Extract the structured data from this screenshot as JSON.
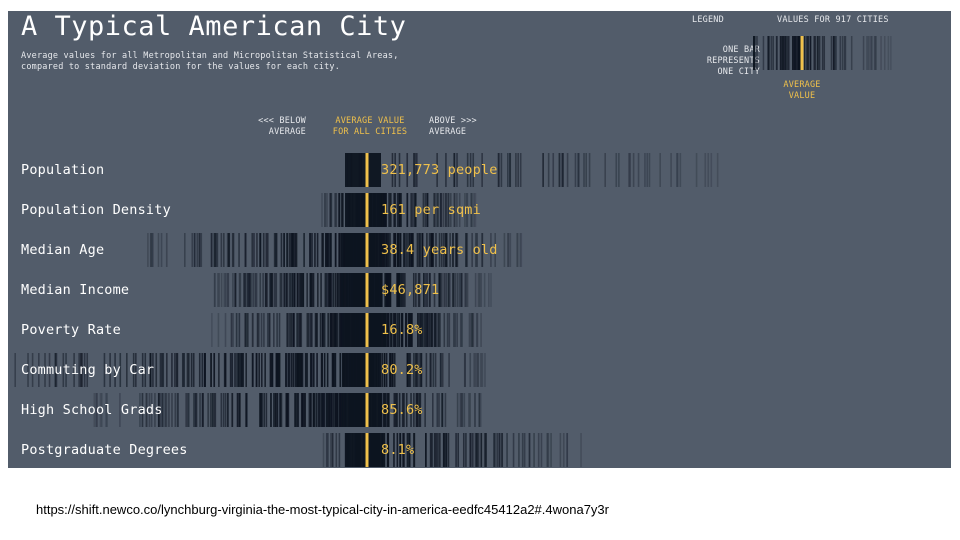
{
  "title": "A Typical American City",
  "subtitle_lines": [
    "Average values for all Metropolitan and Micropolitan Statistical Areas,",
    "compared to standard deviation for the values for each city."
  ],
  "legend": {
    "heading": "LEGEND",
    "values_heading": "VALUES FOR 917 CITIES",
    "bar_text": "ONE BAR\nREPRESENTS\nONE CITY",
    "average_text": "AVERAGE\nVALUE"
  },
  "column_headers": {
    "below": "<<< BELOW\nAVERAGE",
    "average": "AVERAGE VALUE\nFOR ALL CITIES",
    "above": "ABOVE >>>\nAVERAGE"
  },
  "colors": {
    "background": "#525c6a",
    "bar_dark": "#0d1420",
    "average_line": "#f0c14b",
    "value_text": "#f0c14b"
  },
  "chart_data": {
    "type": "strip",
    "title": "A Typical American City",
    "x_meaning": "city value relative to average (standard deviations)",
    "rows": [
      {
        "label": "Population",
        "average_display": "321,773 people",
        "spread_below": 0.3,
        "spread_above": 4.5,
        "density": "sparse"
      },
      {
        "label": "Population Density",
        "average_display": "161 per sqmi",
        "spread_below": 0.6,
        "spread_above": 1.4,
        "density": "medium"
      },
      {
        "label": "Median Age",
        "average_display": "38.4 years old",
        "spread_below": 3.0,
        "spread_above": 2.0,
        "density": "dense"
      },
      {
        "label": "Median Income",
        "average_display": "$46,871",
        "spread_below": 2.1,
        "spread_above": 1.6,
        "density": "dense"
      },
      {
        "label": "Poverty Rate",
        "average_display": "16.8%",
        "spread_below": 2.0,
        "spread_above": 1.6,
        "density": "dense"
      },
      {
        "label": "Commuting by Car",
        "average_display": "80.2%",
        "spread_below": 6.0,
        "spread_above": 1.6,
        "density": "dense"
      },
      {
        "label": "High School Grads",
        "average_display": "85.6%",
        "spread_below": 3.5,
        "spread_above": 1.5,
        "density": "dense"
      },
      {
        "label": "Postgraduate Degrees",
        "average_display": "8.1%",
        "spread_below": 0.6,
        "spread_above": 2.8,
        "density": "medium"
      }
    ]
  },
  "footer_url": "https://shift.newco.co/lynchburg-virginia-the-most-typical-city-in-america-eedfc45412a2#.4wona7y3r"
}
